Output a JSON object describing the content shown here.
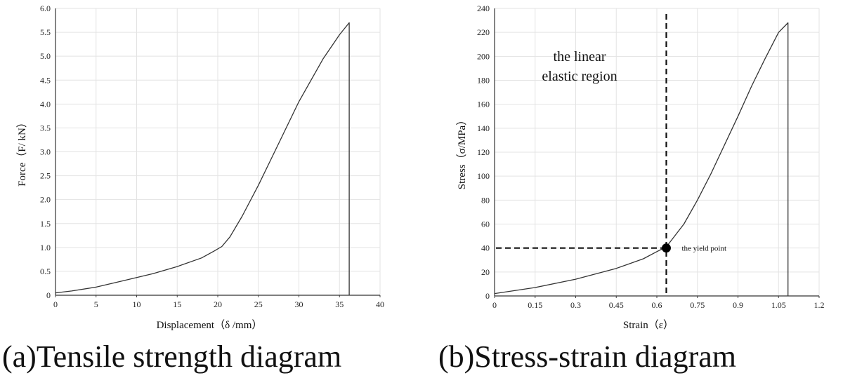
{
  "chart_data": [
    {
      "type": "line",
      "caption": "(a)Tensile strength diagram",
      "xlabel": "Displacement（δ /mm）",
      "ylabel": "Force（F/ kN）",
      "xlim": [
        0,
        40
      ],
      "ylim": [
        0,
        6.0
      ],
      "xticks": [
        "0",
        "5",
        "10",
        "15",
        "20",
        "25",
        "30",
        "35",
        "40"
      ],
      "yticks": [
        "0",
        "0.5",
        "1.0",
        "1.5",
        "2.0",
        "2.5",
        "3.0",
        "3.5",
        "4.0",
        "4.5",
        "5.0",
        "5.5",
        "6.0"
      ],
      "grid": true,
      "series": [
        {
          "x": [
            0,
            2,
            5,
            8,
            10,
            12,
            15,
            18,
            19.5,
            20.5,
            21.5,
            23,
            25,
            27,
            30,
            33,
            35,
            36.2,
            36.2
          ],
          "y": [
            0.05,
            0.09,
            0.17,
            0.29,
            0.37,
            0.45,
            0.6,
            0.78,
            0.92,
            1.02,
            1.22,
            1.65,
            2.3,
            3.0,
            4.05,
            4.95,
            5.45,
            5.7,
            0
          ]
        }
      ]
    },
    {
      "type": "line",
      "caption": "(b)Stress-strain diagram",
      "xlabel": "Strain（ε）",
      "ylabel": "Stress（σ/MPa）",
      "xlim": [
        0,
        1.2
      ],
      "ylim": [
        0,
        240
      ],
      "xticks": [
        "0",
        "0.15",
        "0.3",
        "0.45",
        "0.6",
        "0.75",
        "0.9",
        "1.05",
        "1.2"
      ],
      "yticks": [
        "0",
        "20",
        "40",
        "60",
        "80",
        "100",
        "120",
        "140",
        "160",
        "180",
        "200",
        "220",
        "240"
      ],
      "grid": true,
      "series": [
        {
          "x": [
            0,
            0.15,
            0.3,
            0.45,
            0.55,
            0.6,
            0.635,
            0.7,
            0.75,
            0.8,
            0.9,
            0.95,
            1.0,
            1.05,
            1.085,
            1.085
          ],
          "y": [
            2,
            7,
            14,
            23,
            31,
            37,
            41,
            60,
            80,
            102,
            150,
            175,
            198,
            220,
            228,
            0
          ]
        }
      ],
      "annotations": {
        "region_label_line1": "the linear",
        "region_label_line2": "elastic region",
        "yield_label": "the yield point",
        "yield_point": {
          "x": 0.635,
          "y": 40
        }
      }
    }
  ]
}
